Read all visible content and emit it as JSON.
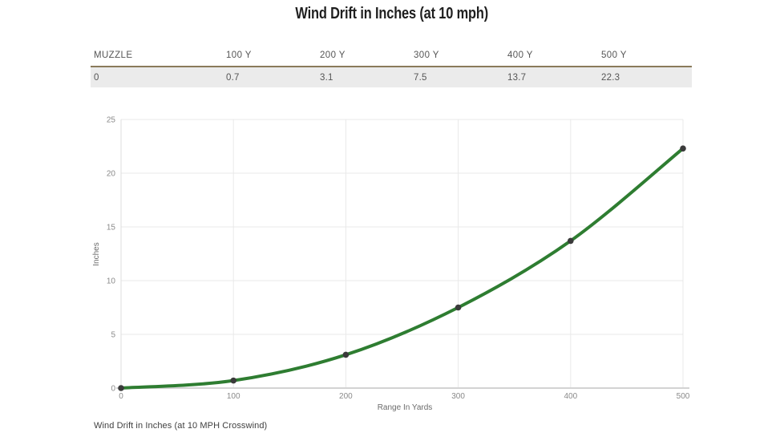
{
  "page": {
    "title": "Wind Drift in Inches (at 10 mph)",
    "caption": "Wind Drift in Inches (at 10 MPH Crosswind)"
  },
  "table": {
    "headers": [
      "MUZZLE",
      "100 Y",
      "200 Y",
      "300 Y",
      "400 Y",
      "500 Y"
    ],
    "values": [
      "0",
      "0.7",
      "3.1",
      "7.5",
      "13.7",
      "22.3"
    ]
  },
  "chart_data": {
    "type": "line",
    "title": "Wind Drift in Inches (at 10 mph)",
    "x": [
      0,
      100,
      200,
      300,
      400,
      500
    ],
    "series": [
      {
        "name": "Wind Drift",
        "values": [
          0,
          0.7,
          3.1,
          7.5,
          13.7,
          22.3
        ]
      }
    ],
    "xlabel": "Range In Yards",
    "ylabel": "Inches",
    "xlim": [
      0,
      500
    ],
    "ylim": [
      0,
      25
    ],
    "xticks": [
      0,
      100,
      200,
      300,
      400,
      500
    ],
    "yticks": [
      0,
      5,
      10,
      15,
      20,
      25
    ],
    "grid": true,
    "legend": "none",
    "smooth": true
  },
  "colors": {
    "title_color": "#1f1f1f",
    "line_color": "#2e7d31",
    "point_color": "#3a3a3a",
    "grid_color": "#e9e9e9",
    "zero_vline_color": "#dedede",
    "axis_line_color": "#d3d3d3",
    "tick_color": "#8a8a8a",
    "axis_title_color": "#6b6b6b",
    "table_border": "#8a7a5a",
    "row_bg": "#ebebeb"
  }
}
